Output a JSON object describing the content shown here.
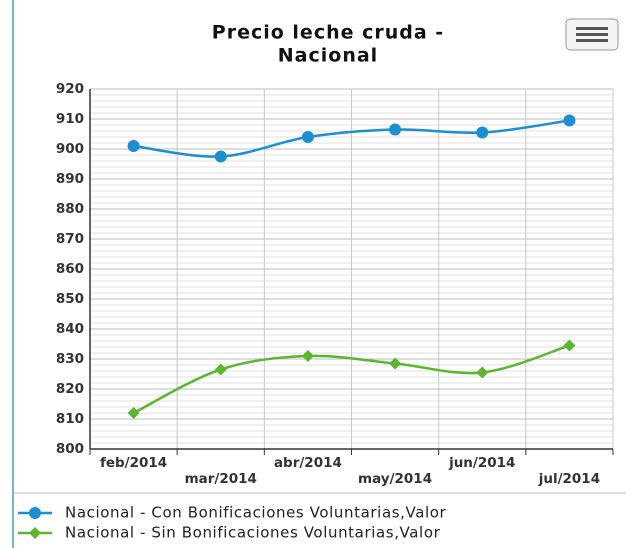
{
  "chart_data": {
    "type": "line",
    "title": [
      "Precio leche cruda -",
      "Nacional"
    ],
    "categories": [
      "feb/2014",
      "mar/2014",
      "abr/2014",
      "may/2014",
      "jun/2014",
      "jul/2014"
    ],
    "series": [
      {
        "name": "Nacional - Con Bonificaciones Voluntarias,Valor",
        "color": "#1b8fd2",
        "marker": "circle",
        "values": [
          901,
          897.5,
          904,
          906.5,
          905.5,
          909.5
        ]
      },
      {
        "name": "Nacional - Sin Bonificaciones Voluntarias,Valor",
        "color": "#5cb52f",
        "marker": "diamond",
        "values": [
          812,
          826.5,
          831,
          828.5,
          825.5,
          834.5
        ]
      }
    ],
    "ylim": [
      800,
      920
    ],
    "yticks": [
      800,
      810,
      820,
      830,
      840,
      850,
      860,
      870,
      880,
      890,
      900,
      910,
      920
    ],
    "grid": true,
    "legend": "bottom"
  }
}
